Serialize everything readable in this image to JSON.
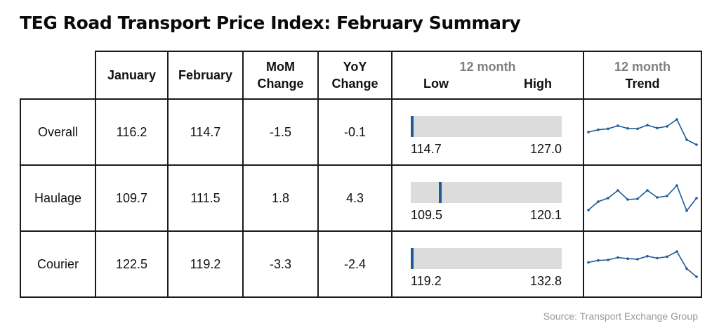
{
  "title": "TEG Road Transport Price Index: February Summary",
  "source": "Source: Transport Exchange Group",
  "headers": {
    "january": "January",
    "february": "February",
    "mom_1": "MoM",
    "mom_2": "Change",
    "yoy_1": "YoY",
    "yoy_2": "Change",
    "range_top": "12 month",
    "range_low": "Low",
    "range_high": "High",
    "trend_top": "12 month",
    "trend_bottom": "Trend"
  },
  "colors": {
    "marker": "#1f5c99",
    "range_bar": "#dcdcdc",
    "sparkline": "#1f5c99"
  },
  "chart_data": {
    "type": "table",
    "rows": [
      {
        "label": "Overall",
        "january": "116.2",
        "february": "114.7",
        "mom": "-1.5",
        "yoy": "-0.1",
        "low": "114.7",
        "high": "127.0",
        "current": 114.7,
        "trend": [
          118.5,
          119.2,
          119.5,
          120.4,
          119.6,
          119.5,
          120.6,
          119.7,
          120.2,
          122.3,
          116.2,
          114.7
        ]
      },
      {
        "label": "Haulage",
        "january": "109.7",
        "february": "111.5",
        "mom": "1.8",
        "yoy": "4.3",
        "low": "109.5",
        "high": "120.1",
        "current": 111.5,
        "trend": [
          109.8,
          111.0,
          111.5,
          112.6,
          111.3,
          111.4,
          112.6,
          111.6,
          111.8,
          113.3,
          109.7,
          111.5
        ]
      },
      {
        "label": "Courier",
        "january": "122.5",
        "february": "119.2",
        "mom": "-3.3",
        "yoy": "-2.4",
        "low": "119.2",
        "high": "132.8",
        "current": 119.2,
        "trend": [
          125.0,
          125.8,
          126.0,
          127.0,
          126.5,
          126.3,
          127.5,
          126.7,
          127.3,
          129.4,
          122.5,
          119.2
        ]
      }
    ]
  }
}
